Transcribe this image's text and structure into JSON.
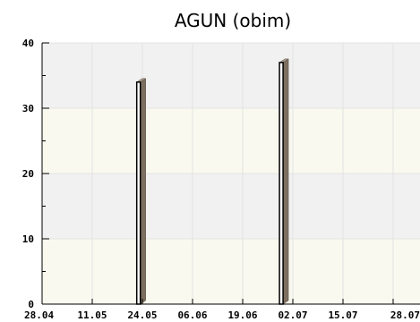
{
  "chart_data": {
    "type": "bar",
    "title": "AGUN (obim)",
    "xlabel": "",
    "ylabel": "",
    "ylim": [
      0,
      40
    ],
    "yticks": [
      "0",
      "10",
      "20",
      "30",
      "40"
    ],
    "x_tick_labels": [
      "28.04",
      "11.05",
      "24.05",
      "06.06",
      "19.06",
      "02.07",
      "15.07",
      "28.07"
    ],
    "xlim": [
      "2024-04-28",
      "2024-07-28"
    ],
    "series": [
      {
        "values": [
          {
            "x": "2024-05-23",
            "y": 34
          },
          {
            "x": "2024-06-29",
            "y": 37
          }
        ]
      }
    ],
    "grid": true,
    "colors": {
      "plot_background": "#f9f9ef",
      "band_alt": "#f1f1f1",
      "bar_face": "#ffffff",
      "bar_outline": "#000000",
      "bar_3d_side": "#7c6f60"
    }
  }
}
